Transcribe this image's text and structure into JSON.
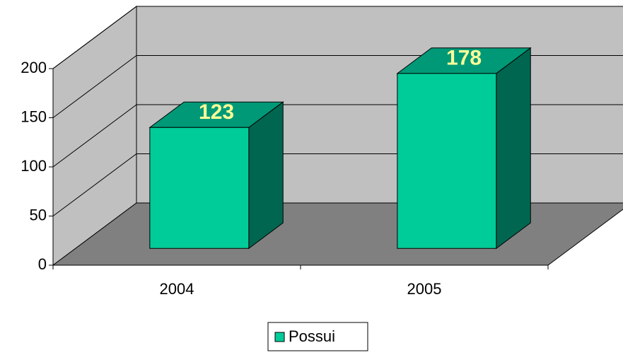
{
  "chart_data": {
    "type": "bar3d",
    "categories": [
      "2004",
      "2005"
    ],
    "series": [
      {
        "name": "Possui",
        "color": "#00cc99",
        "values": [
          123,
          178
        ]
      }
    ],
    "ylim": [
      0,
      200
    ],
    "yticks": [
      0,
      50,
      100,
      150,
      200
    ],
    "grid": true,
    "legend": "bottom"
  }
}
